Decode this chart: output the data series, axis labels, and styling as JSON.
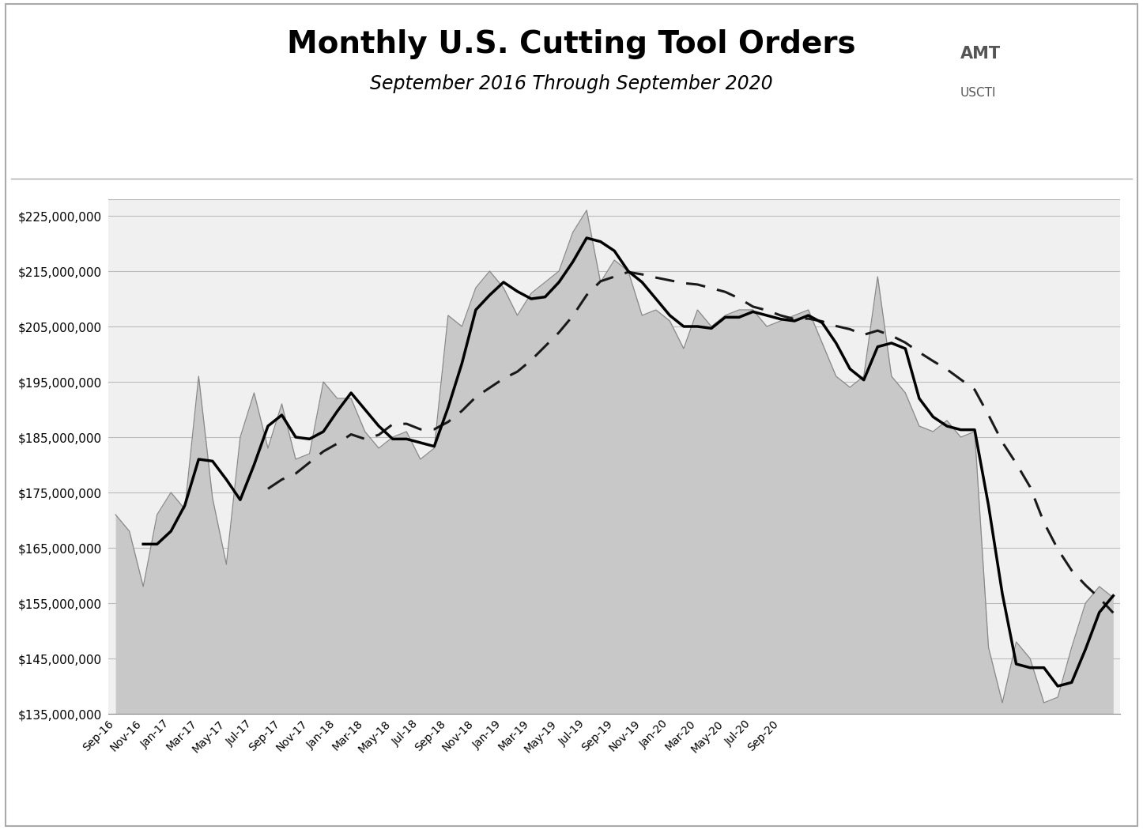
{
  "title": "Monthly U.S. Cutting Tool Orders",
  "subtitle": "September 2016 Through September 2020",
  "ylim": [
    135000000,
    228000000
  ],
  "yticks": [
    135000000,
    145000000,
    155000000,
    165000000,
    175000000,
    185000000,
    195000000,
    205000000,
    215000000,
    225000000
  ],
  "monthly_values": [
    171000000,
    168000000,
    158000000,
    171000000,
    175000000,
    172000000,
    196000000,
    174000000,
    162000000,
    185000000,
    193000000,
    183000000,
    191000000,
    181000000,
    182000000,
    195000000,
    192000000,
    192000000,
    186000000,
    183000000,
    185000000,
    186000000,
    181000000,
    183000000,
    207000000,
    205000000,
    212000000,
    215000000,
    212000000,
    207000000,
    211000000,
    213000000,
    215000000,
    222000000,
    226000000,
    213000000,
    217000000,
    215000000,
    207000000,
    208000000,
    206000000,
    201000000,
    208000000,
    205000000,
    207000000,
    208000000,
    208000000,
    205000000,
    206000000,
    207000000,
    208000000,
    202000000,
    196000000,
    194000000,
    196000000,
    214000000,
    196000000,
    193000000,
    187000000,
    186000000,
    188000000,
    185000000,
    186000000,
    147000000,
    137000000,
    148000000,
    145000000,
    137000000,
    138000000,
    147000000,
    155000000,
    158000000,
    156000000
  ],
  "x_label_map": {
    "Sep-16": 0,
    "Nov-16": 2,
    "Jan-17": 4,
    "Mar-17": 6,
    "May-17": 8,
    "Jul-17": 10,
    "Sep-17": 12,
    "Nov-17": 14,
    "Jan-18": 16,
    "Mar-18": 18,
    "May-18": 20,
    "Jul-18": 22,
    "Sep-18": 24,
    "Nov-18": 26,
    "Jan-19": 28,
    "Mar-19": 30,
    "May-19": 32,
    "Jul-19": 34,
    "Sep-19": 36,
    "Nov-19": 38,
    "Jan-20": 40,
    "Mar-20": 42,
    "May-20": 44,
    "Jul-20": 46,
    "Sep-20": 48
  },
  "area_color": "#c8c8c8",
  "area_edge_color": "#888888",
  "bg_color": "#ffffff",
  "plot_bg_color": "#f0f0f0",
  "grid_color": "#bbbbbb",
  "ma12_color": "#1a1a1a",
  "ma3_color": "#000000",
  "border_color": "#aaaaaa"
}
